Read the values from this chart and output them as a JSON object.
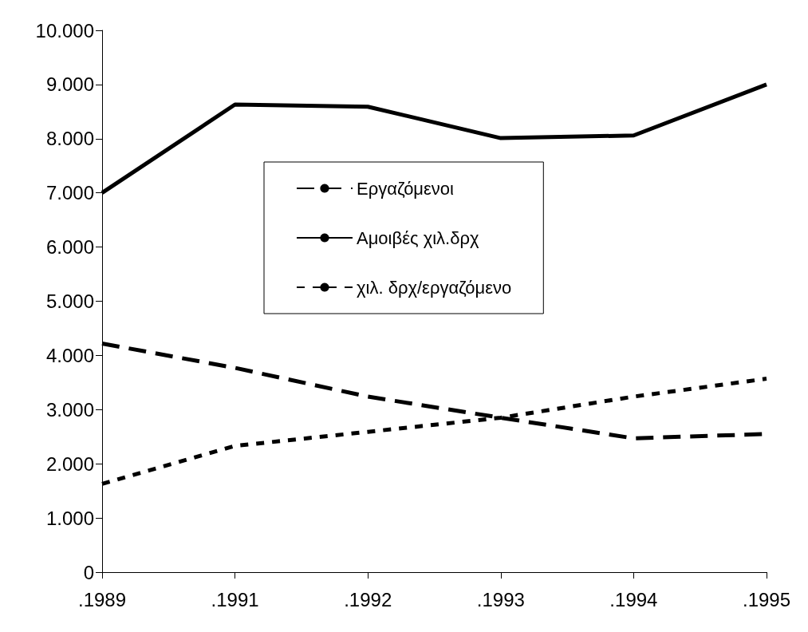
{
  "chart_data": {
    "type": "line",
    "categories": [
      ".1989",
      ".1991",
      ".1992",
      ".1993",
      ".1994",
      ".1995"
    ],
    "series": [
      {
        "name": "Εργαζόμενοι",
        "color": "#000000",
        "line_style": "dashed",
        "values": [
          4220,
          3770,
          3240,
          2850,
          2470,
          2550
        ]
      },
      {
        "name": "Αμοιβές χιλ.δρχ",
        "color": "#000000",
        "line_style": "solid",
        "values": [
          7000,
          8630,
          8590,
          8010,
          8060,
          9000
        ]
      },
      {
        "name": "χιλ. δρχ/εργαζόμενο",
        "color": "#000000",
        "line_style": "dotted",
        "values": [
          1630,
          2330,
          2590,
          2850,
          3240,
          3570
        ]
      }
    ],
    "ylim": [
      0,
      10000
    ],
    "yticks": [
      0,
      {
        "value": 1000,
        "label": "1.000"
      },
      {
        "value": 2000,
        "label": "2.000"
      },
      {
        "value": 3000,
        "label": "3.000"
      },
      {
        "value": 4000,
        "label": "4.000"
      },
      {
        "value": 5000,
        "label": "5.000"
      },
      {
        "value": 6000,
        "label": "6.000"
      },
      {
        "value": 7000,
        "label": "7.000"
      },
      {
        "value": 8000,
        "label": "8.000"
      },
      {
        "value": 9000,
        "label": "9.000"
      },
      {
        "value": 10000,
        "label": "10.000"
      }
    ],
    "grid": false,
    "legend": "center",
    "marker": "none"
  }
}
